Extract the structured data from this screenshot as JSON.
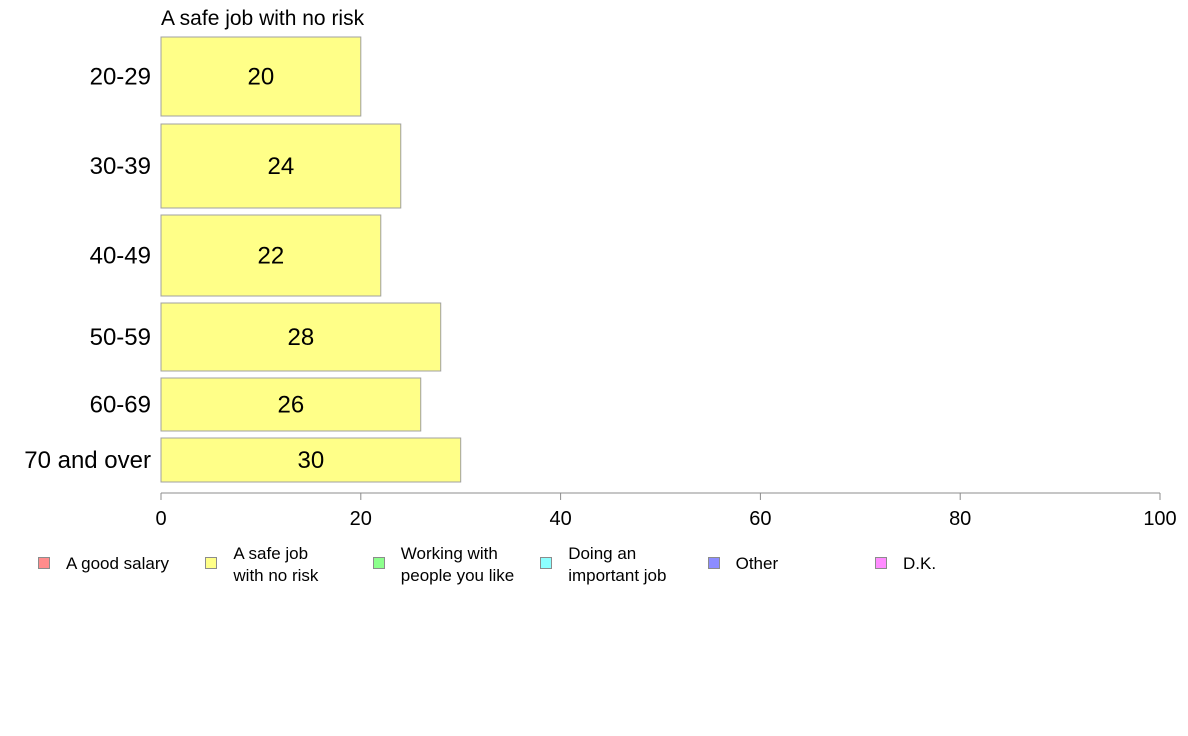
{
  "chart_data": {
    "type": "bar",
    "orientation": "horizontal",
    "title": "A safe job with no risk",
    "categories": [
      "20-29",
      "30-39",
      "40-49",
      "50-59",
      "60-69",
      "70 and over"
    ],
    "series": [
      {
        "name": "A safe job with no risk",
        "values": [
          20,
          24,
          22,
          28,
          26,
          30
        ],
        "color": "#ffff88"
      }
    ],
    "xlim": [
      0,
      100
    ],
    "xticks": [
      "0",
      "20",
      "40",
      "60",
      "80",
      "100"
    ],
    "grid": false,
    "legend": {
      "position": "bottom",
      "items": [
        {
          "label": "A good salary",
          "color": "#ff8c8c"
        },
        {
          "label": "A safe job\nwith no risk",
          "color": "#ffff88"
        },
        {
          "label": "Working with\npeople you like",
          "color": "#8cff8c"
        },
        {
          "label": "Doing an\nimportant job",
          "color": "#8cffff"
        },
        {
          "label": "Other",
          "color": "#8c8cff"
        },
        {
          "label": "D.K.",
          "color": "#ff8cff"
        }
      ]
    }
  }
}
